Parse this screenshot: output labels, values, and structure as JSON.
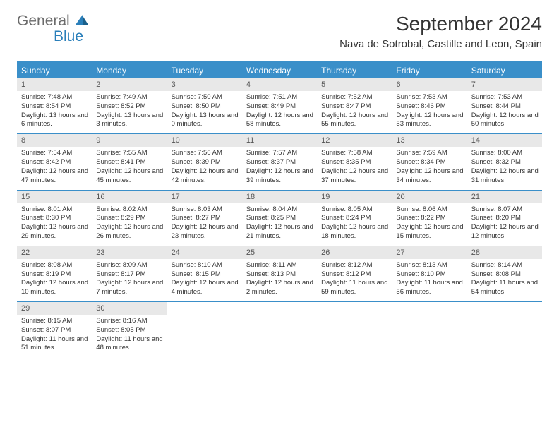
{
  "logo": {
    "general": "General",
    "blue": "Blue"
  },
  "title": "September 2024",
  "location": "Nava de Sotrobal, Castille and Leon, Spain",
  "colors": {
    "header_bg": "#3a8fc9",
    "header_text": "#ffffff",
    "daynum_bg": "#e8e8e8",
    "border": "#3a8fc9",
    "logo_gray": "#6b6b6b",
    "logo_blue": "#2a7fba"
  },
  "day_names": [
    "Sunday",
    "Monday",
    "Tuesday",
    "Wednesday",
    "Thursday",
    "Friday",
    "Saturday"
  ],
  "weeks": [
    [
      {
        "n": "1",
        "sr": "7:48 AM",
        "ss": "8:54 PM",
        "dl": "13 hours and 6 minutes."
      },
      {
        "n": "2",
        "sr": "7:49 AM",
        "ss": "8:52 PM",
        "dl": "13 hours and 3 minutes."
      },
      {
        "n": "3",
        "sr": "7:50 AM",
        "ss": "8:50 PM",
        "dl": "13 hours and 0 minutes."
      },
      {
        "n": "4",
        "sr": "7:51 AM",
        "ss": "8:49 PM",
        "dl": "12 hours and 58 minutes."
      },
      {
        "n": "5",
        "sr": "7:52 AM",
        "ss": "8:47 PM",
        "dl": "12 hours and 55 minutes."
      },
      {
        "n": "6",
        "sr": "7:53 AM",
        "ss": "8:46 PM",
        "dl": "12 hours and 53 minutes."
      },
      {
        "n": "7",
        "sr": "7:53 AM",
        "ss": "8:44 PM",
        "dl": "12 hours and 50 minutes."
      }
    ],
    [
      {
        "n": "8",
        "sr": "7:54 AM",
        "ss": "8:42 PM",
        "dl": "12 hours and 47 minutes."
      },
      {
        "n": "9",
        "sr": "7:55 AM",
        "ss": "8:41 PM",
        "dl": "12 hours and 45 minutes."
      },
      {
        "n": "10",
        "sr": "7:56 AM",
        "ss": "8:39 PM",
        "dl": "12 hours and 42 minutes."
      },
      {
        "n": "11",
        "sr": "7:57 AM",
        "ss": "8:37 PM",
        "dl": "12 hours and 39 minutes."
      },
      {
        "n": "12",
        "sr": "7:58 AM",
        "ss": "8:35 PM",
        "dl": "12 hours and 37 minutes."
      },
      {
        "n": "13",
        "sr": "7:59 AM",
        "ss": "8:34 PM",
        "dl": "12 hours and 34 minutes."
      },
      {
        "n": "14",
        "sr": "8:00 AM",
        "ss": "8:32 PM",
        "dl": "12 hours and 31 minutes."
      }
    ],
    [
      {
        "n": "15",
        "sr": "8:01 AM",
        "ss": "8:30 PM",
        "dl": "12 hours and 29 minutes."
      },
      {
        "n": "16",
        "sr": "8:02 AM",
        "ss": "8:29 PM",
        "dl": "12 hours and 26 minutes."
      },
      {
        "n": "17",
        "sr": "8:03 AM",
        "ss": "8:27 PM",
        "dl": "12 hours and 23 minutes."
      },
      {
        "n": "18",
        "sr": "8:04 AM",
        "ss": "8:25 PM",
        "dl": "12 hours and 21 minutes."
      },
      {
        "n": "19",
        "sr": "8:05 AM",
        "ss": "8:24 PM",
        "dl": "12 hours and 18 minutes."
      },
      {
        "n": "20",
        "sr": "8:06 AM",
        "ss": "8:22 PM",
        "dl": "12 hours and 15 minutes."
      },
      {
        "n": "21",
        "sr": "8:07 AM",
        "ss": "8:20 PM",
        "dl": "12 hours and 12 minutes."
      }
    ],
    [
      {
        "n": "22",
        "sr": "8:08 AM",
        "ss": "8:19 PM",
        "dl": "12 hours and 10 minutes."
      },
      {
        "n": "23",
        "sr": "8:09 AM",
        "ss": "8:17 PM",
        "dl": "12 hours and 7 minutes."
      },
      {
        "n": "24",
        "sr": "8:10 AM",
        "ss": "8:15 PM",
        "dl": "12 hours and 4 minutes."
      },
      {
        "n": "25",
        "sr": "8:11 AM",
        "ss": "8:13 PM",
        "dl": "12 hours and 2 minutes."
      },
      {
        "n": "26",
        "sr": "8:12 AM",
        "ss": "8:12 PM",
        "dl": "11 hours and 59 minutes."
      },
      {
        "n": "27",
        "sr": "8:13 AM",
        "ss": "8:10 PM",
        "dl": "11 hours and 56 minutes."
      },
      {
        "n": "28",
        "sr": "8:14 AM",
        "ss": "8:08 PM",
        "dl": "11 hours and 54 minutes."
      }
    ],
    [
      {
        "n": "29",
        "sr": "8:15 AM",
        "ss": "8:07 PM",
        "dl": "11 hours and 51 minutes."
      },
      {
        "n": "30",
        "sr": "8:16 AM",
        "ss": "8:05 PM",
        "dl": "11 hours and 48 minutes."
      },
      null,
      null,
      null,
      null,
      null
    ]
  ]
}
